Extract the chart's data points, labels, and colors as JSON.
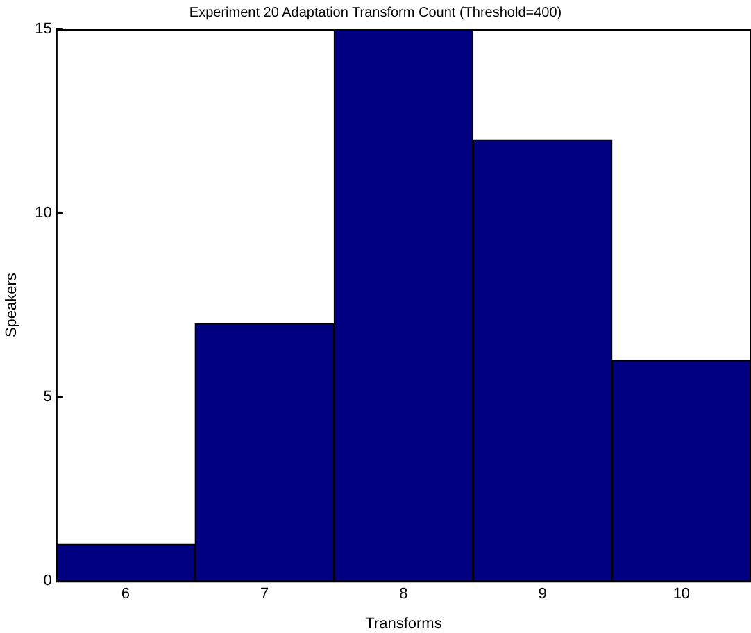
{
  "chart_data": {
    "type": "histogram",
    "title": "Experiment 20 Adaptation Transform Count (Threshold=400)",
    "xlabel": "Transforms",
    "ylabel": "Speakers",
    "bins": [
      5.5,
      6.5,
      7.5,
      8.5,
      9.5,
      10.5
    ],
    "values": [
      1,
      7,
      15,
      12,
      6
    ],
    "color": "#000080",
    "xlim": [
      5.5,
      10.5
    ],
    "xticks": [
      6,
      7,
      8,
      9,
      10
    ],
    "ylim": [
      0,
      15
    ],
    "yticks": [
      0,
      5,
      10,
      15
    ],
    "grid": false,
    "legend": false
  }
}
